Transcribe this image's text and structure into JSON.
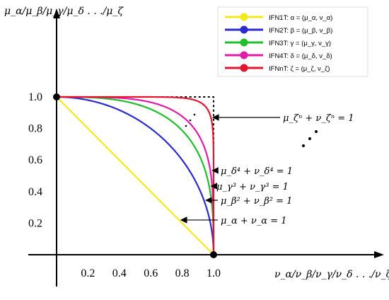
{
  "chart_data": {
    "type": "line",
    "ylabel": "μ_α/μ_β/μ_γ/μ_δ . . ./μ_ζ",
    "xlabel": "ν_α/ν_β/ν_γ/ν_δ . . ./ν_ζ",
    "xlim": [
      0,
      1
    ],
    "ylim": [
      0,
      1
    ],
    "x_ticks": [
      "0.2",
      "0.4",
      "0.6",
      "0.8",
      "1.0"
    ],
    "y_ticks": [
      "0.2",
      "0.4",
      "0.6",
      "0.8",
      "1.0"
    ],
    "series": [
      {
        "name": "IFN1T: α = (μ_α, ν_α)",
        "color": "#f2ea1c",
        "exponent": 1,
        "annotation": "μ_α + ν_α = 1"
      },
      {
        "name": "IFN2T: β = (μ_β, ν_β)",
        "color": "#2b2bd0",
        "exponent": 2,
        "annotation": "μ_β² + ν_β² = 1"
      },
      {
        "name": "IFN3T: γ = (μ_γ, ν_γ)",
        "color": "#1fbf2a",
        "exponent": 3,
        "annotation": "μ_γ³ + ν_γ³ = 1"
      },
      {
        "name": "IFN4T: δ = (μ_δ, ν_δ)",
        "color": "#e21ca8",
        "exponent": 4,
        "annotation": "μ_δ⁴ + ν_δ⁴ = 1"
      },
      {
        "name": "IFNnT: ζ = (μ_ζ, ν_ζ)",
        "color": "#e3142e",
        "exponent": 12,
        "annotation": "μ_ζⁿ + ν_ζⁿ = 1"
      }
    ],
    "points": [
      [
        0,
        1
      ],
      [
        1,
        0
      ]
    ],
    "legend_position": "top-right",
    "grid": false
  }
}
